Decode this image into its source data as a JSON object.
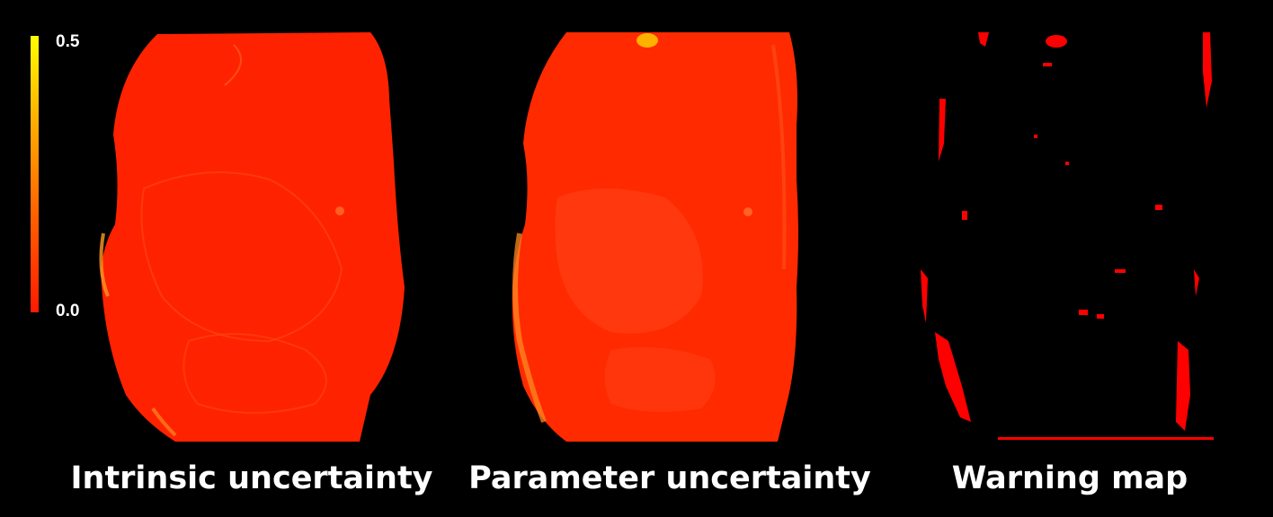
{
  "colorbar": {
    "max_label": "0.5",
    "min_label": "0.0",
    "colors": [
      "#ffff00",
      "#ffb000",
      "#ff6000",
      "#ff1a00"
    ]
  },
  "panels": [
    {
      "caption": "Intrinsic uncertainty",
      "fill": "#ff2200"
    },
    {
      "caption": "Parameter uncertainty",
      "fill": "#ff2a00"
    },
    {
      "caption": "Warning map",
      "fill": "#000000",
      "mark_color": "#ff0000"
    }
  ]
}
